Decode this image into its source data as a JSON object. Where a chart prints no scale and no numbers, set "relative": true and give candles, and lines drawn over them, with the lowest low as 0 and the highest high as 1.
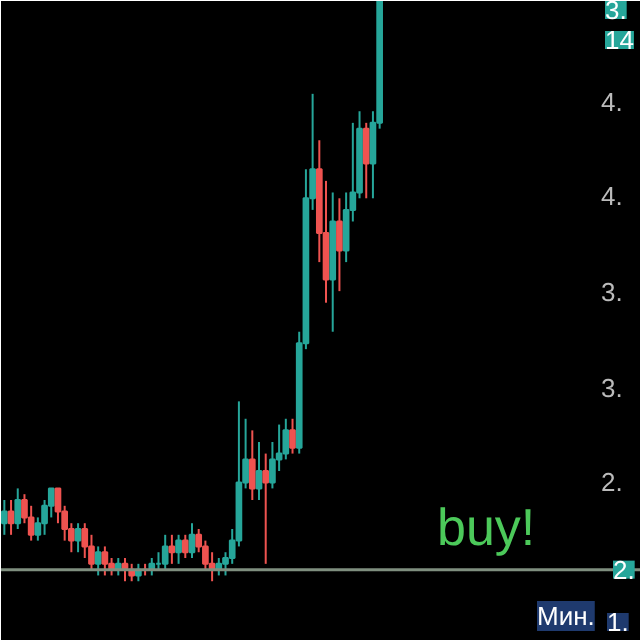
{
  "chart_data": {
    "type": "candlestick",
    "relative": true,
    "categories": [
      null,
      null,
      null,
      null,
      null,
      null,
      null,
      null,
      null,
      null,
      null,
      null,
      null,
      null,
      null,
      null,
      null,
      null,
      null,
      null,
      null,
      null,
      null,
      null,
      null,
      null,
      null,
      null,
      null,
      null,
      null,
      null,
      null,
      null,
      null,
      null,
      null,
      null,
      null,
      null,
      null,
      null,
      null,
      null,
      null,
      null,
      null,
      null,
      null,
      null,
      null,
      null,
      null,
      null,
      null,
      null,
      null
    ],
    "ohlc": [
      [
        0.1,
        0.14,
        0.08,
        0.12
      ],
      [
        0.12,
        0.14,
        0.08,
        0.1
      ],
      [
        0.1,
        0.16,
        0.09,
        0.14
      ],
      [
        0.14,
        0.15,
        0.1,
        0.11
      ],
      [
        0.11,
        0.13,
        0.07,
        0.08
      ],
      [
        0.08,
        0.11,
        0.07,
        0.1
      ],
      [
        0.1,
        0.14,
        0.08,
        0.13
      ],
      [
        0.13,
        0.16,
        0.11,
        0.16
      ],
      [
        0.16,
        0.16,
        0.1,
        0.12
      ],
      [
        0.12,
        0.13,
        0.07,
        0.09
      ],
      [
        0.09,
        0.1,
        0.05,
        0.07
      ],
      [
        0.07,
        0.1,
        0.05,
        0.09
      ],
      [
        0.09,
        0.1,
        0.04,
        0.06
      ],
      [
        0.06,
        0.08,
        0.02,
        0.03
      ],
      [
        0.03,
        0.06,
        0.01,
        0.05
      ],
      [
        0.05,
        0.06,
        0.01,
        0.03
      ],
      [
        0.03,
        0.04,
        0.01,
        0.02
      ],
      [
        0.02,
        0.04,
        0.01,
        0.03
      ],
      [
        0.03,
        0.04,
        0.0,
        0.02
      ],
      [
        0.02,
        0.03,
        0.0,
        0.01
      ],
      [
        0.01,
        0.03,
        0.0,
        0.02
      ],
      [
        0.02,
        0.03,
        0.01,
        0.02
      ],
      [
        0.02,
        0.04,
        0.01,
        0.03
      ],
      [
        0.03,
        0.05,
        0.02,
        0.03
      ],
      [
        0.03,
        0.08,
        0.02,
        0.06
      ],
      [
        0.06,
        0.08,
        0.03,
        0.05
      ],
      [
        0.05,
        0.08,
        0.03,
        0.07
      ],
      [
        0.07,
        0.08,
        0.04,
        0.05
      ],
      [
        0.05,
        0.1,
        0.04,
        0.08
      ],
      [
        0.08,
        0.09,
        0.05,
        0.06
      ],
      [
        0.06,
        0.07,
        0.02,
        0.03
      ],
      [
        0.03,
        0.05,
        0.0,
        0.02
      ],
      [
        0.02,
        0.04,
        0.01,
        0.03
      ],
      [
        0.03,
        0.05,
        0.01,
        0.04
      ],
      [
        0.04,
        0.09,
        0.03,
        0.07
      ],
      [
        0.07,
        0.31,
        0.06,
        0.17
      ],
      [
        0.17,
        0.28,
        0.16,
        0.21
      ],
      [
        0.21,
        0.26,
        0.14,
        0.16
      ],
      [
        0.16,
        0.24,
        0.14,
        0.19
      ],
      [
        0.19,
        0.22,
        0.03,
        0.17
      ],
      [
        0.17,
        0.24,
        0.16,
        0.21
      ],
      [
        0.21,
        0.27,
        0.19,
        0.22
      ],
      [
        0.22,
        0.28,
        0.21,
        0.26
      ],
      [
        0.26,
        0.28,
        0.22,
        0.23
      ],
      [
        0.23,
        0.43,
        0.22,
        0.41
      ],
      [
        0.41,
        0.71,
        0.4,
        0.66
      ],
      [
        0.66,
        0.84,
        0.64,
        0.71
      ],
      [
        0.71,
        0.76,
        0.55,
        0.6
      ],
      [
        0.6,
        0.69,
        0.48,
        0.52
      ],
      [
        0.52,
        0.67,
        0.43,
        0.62
      ],
      [
        0.62,
        0.66,
        0.5,
        0.57
      ],
      [
        0.57,
        0.67,
        0.55,
        0.64
      ],
      [
        0.64,
        0.79,
        0.62,
        0.67
      ],
      [
        0.67,
        0.81,
        0.66,
        0.78
      ],
      [
        0.78,
        0.79,
        0.66,
        0.72
      ],
      [
        0.72,
        0.81,
        0.66,
        0.79
      ],
      [
        0.79,
        1.0,
        0.78,
        1.0
      ]
    ],
    "colors": [
      "#26a69a",
      "#ef5350",
      "#26a69a",
      "#ef5350",
      "#ef5350",
      "#26a69a",
      "#26a69a",
      "#26a69a",
      "#ef5350",
      "#ef5350",
      "#ef5350",
      "#26a69a",
      "#ef5350",
      "#ef5350",
      "#26a69a",
      "#ef5350",
      "#ef5350",
      "#26a69a",
      "#ef5350",
      "#ef5350",
      "#26a69a",
      "#ef5350",
      "#26a69a",
      "#26a69a",
      "#26a69a",
      "#ef5350",
      "#26a69a",
      "#ef5350",
      "#26a69a",
      "#ef5350",
      "#ef5350",
      "#ef5350",
      "#26a69a",
      "#26a69a",
      "#26a69a",
      "#26a69a",
      "#26a69a",
      "#ef5350",
      "#26a69a",
      "#ef5350",
      "#26a69a",
      "#26a69a",
      "#26a69a",
      "#ef5350",
      "#26a69a",
      "#26a69a",
      "#26a69a",
      "#ef5350",
      "#ef5350",
      "#26a69a",
      "#ef5350",
      "#26a69a",
      "#26a69a",
      "#26a69a",
      "#ef5350",
      "#26a69a",
      "#26a69a"
    ],
    "ref_lines": [
      {
        "axis": "y",
        "value": 0.02,
        "label": "2.",
        "color": "#7f8f7f"
      }
    ],
    "annotations": [
      "buy!",
      "4.",
      "4.",
      "3.",
      "3.",
      "2.",
      "3.",
      "14",
      "Мин.",
      "1."
    ]
  }
}
